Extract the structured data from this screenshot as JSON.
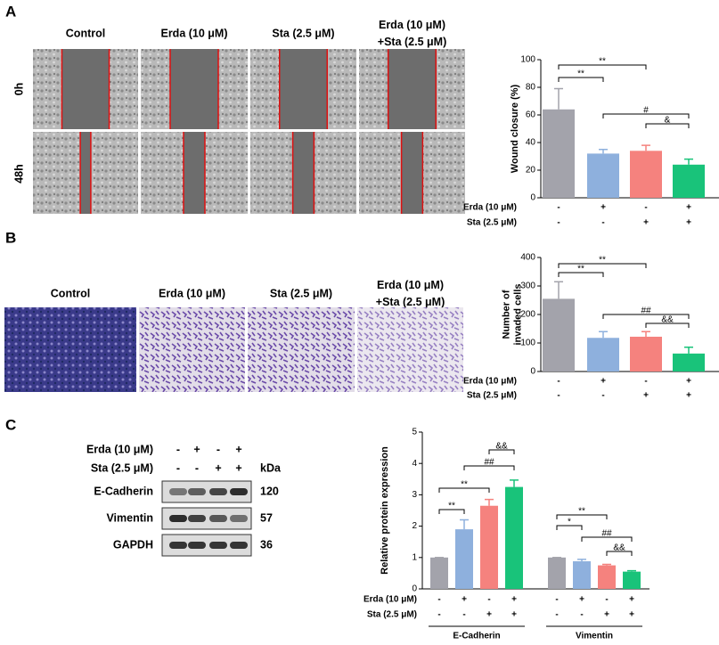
{
  "panels": {
    "A": {
      "letter": "A",
      "columns": [
        "Control",
        "Erda (10 μM)",
        "Sta (2.5 μM)",
        [
          "Erda (10 μM)",
          "+Sta (2.5 μM)"
        ]
      ],
      "rows": [
        "0h",
        "48h"
      ]
    },
    "B": {
      "letter": "B",
      "columns": [
        "Control",
        "Erda (10 μM)",
        "Sta (2.5 μM)",
        [
          "Erda (10 μM)",
          "+Sta (2.5 μM)"
        ]
      ]
    },
    "C": {
      "letter": "C",
      "blot": {
        "conditions": [
          {
            "name": "Erda (10 μM)",
            "signs": [
              "-",
              "+",
              "-",
              "+"
            ]
          },
          {
            "name": "Sta (2.5 μM)",
            "signs": [
              "-",
              "-",
              "+",
              "+"
            ]
          }
        ],
        "unit": "kDa",
        "proteins": [
          {
            "name": "E-Cadherin",
            "kda": 120
          },
          {
            "name": "Vimentin",
            "kda": 57
          },
          {
            "name": "GAPDH",
            "kda": 36
          }
        ]
      }
    }
  },
  "chart_data": [
    {
      "type": "bar",
      "ylabel": "Wound closure (%)",
      "values": [
        64,
        32,
        34,
        24
      ],
      "errors": [
        15,
        3,
        4,
        4
      ],
      "colors": [
        "#a3a3ab",
        "#8eb0dd",
        "#f5827e",
        "#19c37a"
      ],
      "ylim": [
        0,
        100
      ],
      "yticks": [
        0,
        20,
        40,
        60,
        80,
        100
      ],
      "conditions": [
        {
          "name": "Erda (10 μM)",
          "signs": [
            "-",
            "+",
            "-",
            "+"
          ]
        },
        {
          "name": "Sta (2.5 μM)",
          "signs": [
            "-",
            "-",
            "+",
            "+"
          ]
        }
      ],
      "annotations": [
        "**",
        "**",
        "#",
        "&"
      ]
    },
    {
      "type": "bar",
      "ylabel": [
        "Number of",
        "invaded cells"
      ],
      "values": [
        255,
        118,
        122,
        63
      ],
      "errors": [
        60,
        22,
        18,
        22
      ],
      "colors": [
        "#a3a3ab",
        "#8eb0dd",
        "#f5827e",
        "#19c37a"
      ],
      "ylim": [
        0,
        400
      ],
      "yticks": [
        0,
        100,
        200,
        300,
        400
      ],
      "conditions": [
        {
          "name": "Erda (10 μM)",
          "signs": [
            "-",
            "+",
            "-",
            "+"
          ]
        },
        {
          "name": "Sta (2.5 μM)",
          "signs": [
            "-",
            "-",
            "+",
            "+"
          ]
        }
      ],
      "annotations": [
        "**",
        "**",
        "##",
        "&&"
      ]
    },
    {
      "type": "grouped_bar",
      "ylabel": "Relative protein expression",
      "groups": [
        {
          "name": "E-Cadherin",
          "values": [
            1,
            1.9,
            2.65,
            3.25
          ],
          "errors": [
            0,
            0.3,
            0.2,
            0.22
          ],
          "annotations": [
            "**",
            "**",
            "##",
            "&&"
          ]
        },
        {
          "name": "Vimentin",
          "values": [
            1,
            0.88,
            0.75,
            0.55
          ],
          "errors": [
            0,
            0.06,
            0.03,
            0.03
          ],
          "annotations": [
            "*",
            "**",
            "##",
            "&&"
          ]
        }
      ],
      "colors": [
        "#a3a3ab",
        "#8eb0dd",
        "#f5827e",
        "#19c37a"
      ],
      "ylim": [
        0,
        5
      ],
      "yticks": [
        0,
        1,
        2,
        3,
        4,
        5
      ],
      "conditions": [
        {
          "name": "Erda (10 μM)",
          "signs": [
            "-",
            "+",
            "-",
            "+"
          ]
        },
        {
          "name": "Sta (2.5 μM)",
          "signs": [
            "-",
            "-",
            "+",
            "+"
          ]
        }
      ]
    }
  ]
}
